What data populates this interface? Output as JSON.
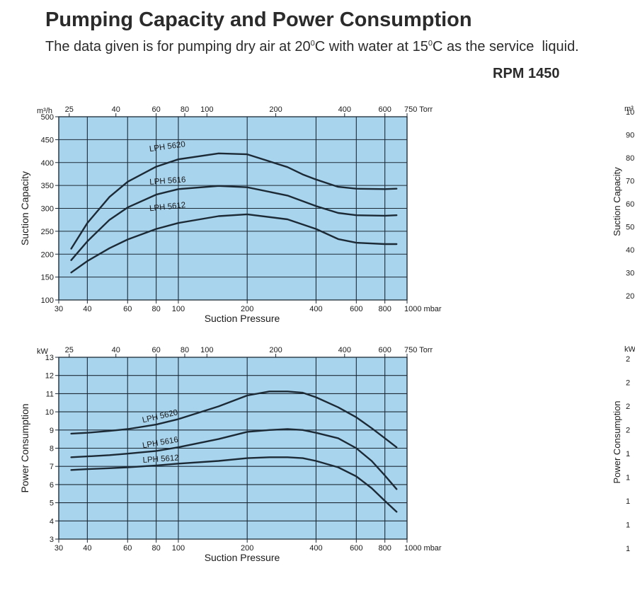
{
  "header": {
    "title": "Pumping Capacity and Power Consumption",
    "subtitle_a": "The data given is for pumping dry air at 20",
    "subtitle_sup1": "0",
    "subtitle_b": "C with water at 15",
    "subtitle_sup2": "0",
    "subtitle_c": "C as the service  liquid.",
    "rpm": "RPM 1450"
  },
  "colors": {
    "plot_bg": "#a9d4ee",
    "grid": "#1c2a36",
    "curve": "#1c2a36"
  },
  "chart_data": [
    {
      "type": "line",
      "ylabel": "Suction Capacity",
      "yunit": "m³/h",
      "xlabel": "Suction Pressure",
      "x_scale": "log",
      "xlim": [
        30,
        1000
      ],
      "ylim": [
        100,
        500
      ],
      "x_ticks": [
        30,
        40,
        60,
        80,
        100,
        200,
        400,
        600,
        800,
        1000
      ],
      "x_tick_labels": [
        "30",
        "40",
        "60",
        "80",
        "100",
        "200",
        "400",
        "600",
        "800",
        "1000 mbar"
      ],
      "y_ticks": [
        100,
        150,
        200,
        250,
        300,
        350,
        400,
        450,
        500
      ],
      "secondary_x_ticks": [
        25,
        40,
        60,
        80,
        100,
        200,
        400,
        600,
        750
      ],
      "secondary_x_tick_labels": [
        "25",
        "40",
        "60",
        "80",
        "100",
        "200",
        "400",
        "600",
        "750 Torr"
      ],
      "grid": true,
      "series": [
        {
          "name": "LPH 5620",
          "x": [
            34,
            40,
            50,
            60,
            80,
            100,
            150,
            200,
            300,
            350,
            400,
            500,
            600,
            800,
            900
          ],
          "y": [
            212,
            268,
            325,
            358,
            391,
            407,
            420,
            418,
            390,
            374,
            363,
            347,
            343,
            342,
            343
          ]
        },
        {
          "name": "LPH 5616",
          "x": [
            34,
            40,
            50,
            60,
            80,
            100,
            150,
            200,
            300,
            400,
            500,
            600,
            800,
            900
          ],
          "y": [
            187,
            228,
            275,
            302,
            330,
            342,
            349,
            346,
            328,
            305,
            290,
            285,
            284,
            285
          ]
        },
        {
          "name": "LPH 5612",
          "x": [
            34,
            40,
            50,
            60,
            80,
            100,
            150,
            200,
            300,
            400,
            500,
            600,
            800,
            900
          ],
          "y": [
            160,
            185,
            213,
            232,
            255,
            268,
            283,
            287,
            276,
            255,
            233,
            225,
            222,
            222
          ]
        }
      ]
    },
    {
      "type": "line",
      "ylabel": "Power Consumption",
      "yunit": "kW",
      "xlabel": "Suction Pressure",
      "x_scale": "log",
      "xlim": [
        30,
        1000
      ],
      "ylim": [
        3,
        13
      ],
      "x_ticks": [
        30,
        40,
        60,
        80,
        100,
        200,
        400,
        600,
        800,
        1000
      ],
      "x_tick_labels": [
        "30",
        "40",
        "60",
        "80",
        "100",
        "200",
        "400",
        "600",
        "800",
        "1000 mbar"
      ],
      "y_ticks": [
        3,
        4,
        5,
        6,
        7,
        8,
        9,
        10,
        11,
        12,
        13
      ],
      "secondary_x_ticks": [
        25,
        40,
        60,
        80,
        100,
        200,
        400,
        600,
        750
      ],
      "secondary_x_tick_labels": [
        "25",
        "40",
        "60",
        "80",
        "100",
        "200",
        "400",
        "600",
        "750 Torr"
      ],
      "grid": true,
      "series": [
        {
          "name": "LPH 5620",
          "x": [
            34,
            40,
            50,
            60,
            80,
            100,
            150,
            200,
            250,
            300,
            350,
            400,
            500,
            600,
            700,
            800,
            900
          ],
          "y": [
            8.8,
            8.85,
            8.95,
            9.05,
            9.3,
            9.6,
            10.3,
            10.9,
            11.12,
            11.12,
            11.05,
            10.8,
            10.25,
            9.7,
            9.1,
            8.55,
            8.05
          ]
        },
        {
          "name": "LPH 5616",
          "x": [
            34,
            40,
            50,
            60,
            80,
            100,
            150,
            200,
            250,
            300,
            350,
            400,
            500,
            600,
            700,
            800,
            900
          ],
          "y": [
            7.5,
            7.55,
            7.62,
            7.7,
            7.85,
            8.05,
            8.5,
            8.9,
            9.0,
            9.05,
            9.0,
            8.85,
            8.55,
            8.0,
            7.3,
            6.5,
            5.75
          ]
        },
        {
          "name": "LPH 5612",
          "x": [
            34,
            40,
            50,
            60,
            80,
            100,
            150,
            200,
            250,
            300,
            350,
            400,
            500,
            600,
            700,
            800,
            900
          ],
          "y": [
            6.8,
            6.85,
            6.9,
            6.95,
            7.05,
            7.15,
            7.3,
            7.45,
            7.5,
            7.5,
            7.45,
            7.3,
            6.95,
            6.45,
            5.8,
            5.1,
            4.5
          ]
        }
      ]
    }
  ],
  "right_partial": {
    "top_unit": "m³",
    "top_ticks": [
      "10",
      "90",
      "80",
      "70",
      "60",
      "50",
      "40",
      "30",
      "20"
    ],
    "top_ylabel": "Suction Capacity",
    "bottom_unit": "kW",
    "bottom_ticks": [
      "2",
      "2",
      "2",
      "2",
      "1",
      "1",
      "1",
      "1",
      "1"
    ],
    "bottom_ylabel": "Power Consumption"
  }
}
